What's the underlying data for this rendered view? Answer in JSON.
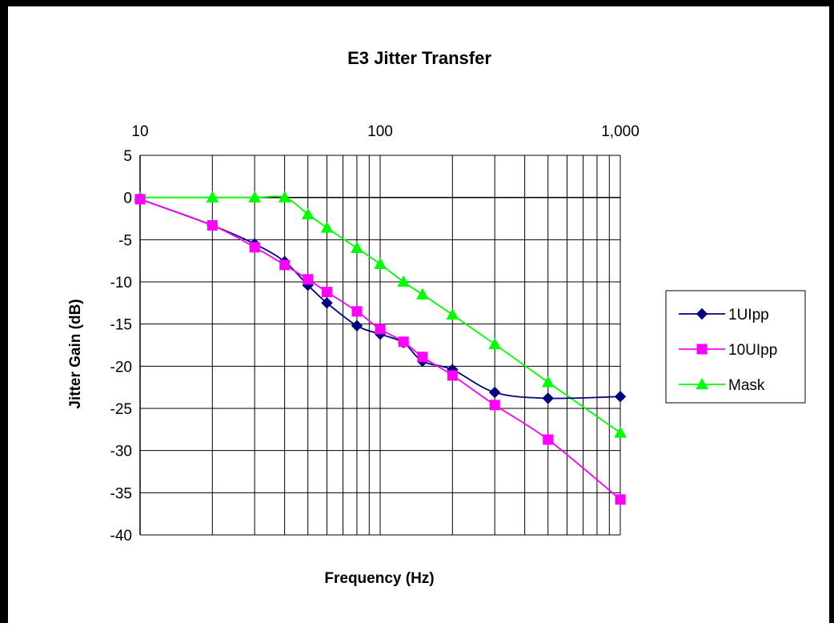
{
  "chart_data": {
    "type": "line",
    "title": "E3 Jitter Transfer",
    "xlabel": "Frequency (Hz)",
    "ylabel": "Jitter Gain (dB)",
    "x_scale": "log",
    "xlim": [
      10,
      1000
    ],
    "ylim": [
      -40,
      5
    ],
    "x_tick_labels": [
      "10",
      "100",
      "1,000"
    ],
    "y_tick_labels": [
      "5",
      "0",
      "-5",
      "-10",
      "-15",
      "-20",
      "-25",
      "-30",
      "-35",
      "-40"
    ],
    "grid": true,
    "legend_position": "right",
    "series": [
      {
        "name": "1UIpp",
        "color": "#000080",
        "marker": "diamond",
        "x": [
          10,
          20,
          30,
          40,
          50,
          60,
          80,
          100,
          125,
          150,
          200,
          300,
          500,
          1000
        ],
        "y": [
          -0.2,
          -3.3,
          -5.5,
          -7.6,
          -10.4,
          -12.5,
          -15.2,
          -16.2,
          -17.2,
          -19.4,
          -20.4,
          -23.1,
          -23.8,
          -23.6
        ]
      },
      {
        "name": "10UIpp",
        "color": "#ff00ff",
        "marker": "square",
        "x": [
          10,
          20,
          30,
          40,
          50,
          60,
          80,
          100,
          125,
          150,
          200,
          300,
          500,
          1000
        ],
        "y": [
          -0.2,
          -3.3,
          -5.9,
          -8.0,
          -9.7,
          -11.2,
          -13.5,
          -15.6,
          -17.1,
          -18.9,
          -21.1,
          -24.6,
          -28.7,
          -35.8
        ]
      },
      {
        "name": "Mask",
        "color": "#00ff00",
        "marker": "triangle",
        "x": [
          10,
          20,
          30,
          40,
          50,
          60,
          80,
          100,
          125,
          150,
          200,
          300,
          500,
          1000
        ],
        "y": [
          0,
          0,
          0,
          0,
          -2.0,
          -3.6,
          -6.0,
          -7.9,
          -10.0,
          -11.5,
          -13.9,
          -17.4,
          -21.9,
          -27.9
        ]
      }
    ]
  }
}
